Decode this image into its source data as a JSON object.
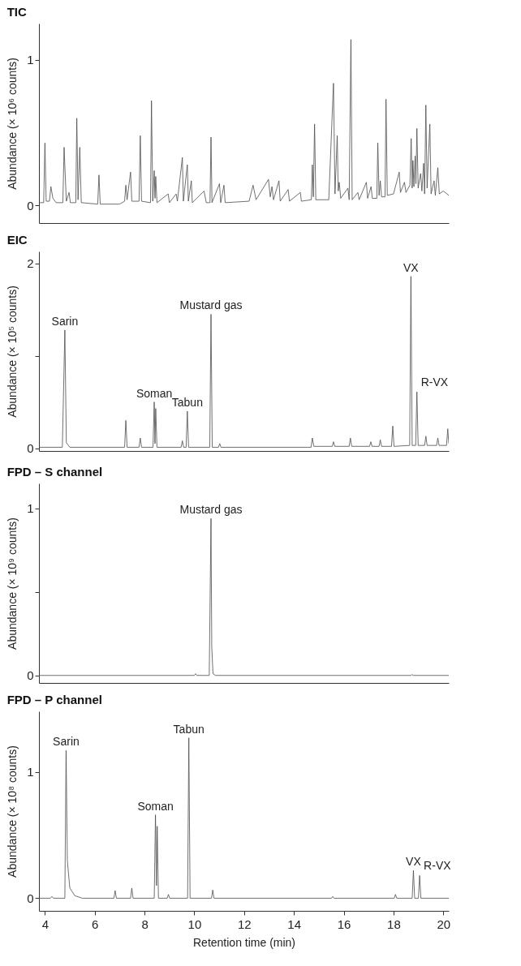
{
  "chart_data": [
    {
      "type": "line",
      "title": "TIC",
      "ylabel": "Abundance (× 10⁶ counts)",
      "xlim": [
        3.76,
        20.22
      ],
      "ylim": [
        -0.12,
        1.25
      ],
      "yticks": [
        0,
        1
      ],
      "tick_labels": "y",
      "grid": false,
      "line_style": "solid",
      "series": [
        {
          "color": "#4d4d4d",
          "x": [
            3.76,
            3.95,
            4.0,
            4.05,
            4.18,
            4.24,
            4.32,
            4.45,
            4.72,
            4.77,
            4.8,
            4.86,
            4.97,
            5.02,
            5.24,
            5.28,
            5.33,
            5.4,
            5.46,
            6.12,
            6.17,
            6.22,
            7.0,
            7.2,
            7.25,
            7.3,
            7.44,
            7.49,
            7.78,
            7.83,
            7.88,
            8.24,
            8.28,
            8.33,
            8.39,
            8.42,
            8.45,
            8.5,
            8.95,
            9.0,
            9.27,
            9.32,
            9.52,
            9.56,
            9.72,
            9.76,
            9.88,
            9.92,
            10.39,
            10.48,
            10.63,
            10.67,
            10.71,
            11.01,
            11.06,
            11.19,
            11.24,
            12.2,
            12.36,
            12.48,
            12.98,
            13.05,
            13.12,
            13.18,
            13.4,
            13.45,
            13.77,
            13.82,
            14.26,
            14.3,
            14.7,
            14.74,
            14.78,
            14.83,
            14.88,
            15.4,
            15.59,
            15.65,
            15.74,
            15.78,
            15.82,
            15.88,
            16.17,
            16.22,
            16.29,
            16.34,
            16.57,
            16.62,
            16.91,
            16.96,
            17.1,
            17.15,
            17.33,
            17.37,
            17.42,
            17.47,
            17.52,
            17.66,
            17.7,
            17.75,
            18.0,
            18.23,
            18.28,
            18.44,
            18.5,
            18.66,
            18.71,
            18.75,
            18.78,
            18.82,
            18.87,
            18.9,
            18.94,
            18.99,
            19.09,
            19.14,
            19.21,
            19.25,
            19.3,
            19.35,
            19.46,
            19.51,
            19.63,
            19.68,
            19.78,
            19.84,
            20.0,
            20.22
          ],
          "values": [
            0.02,
            0.02,
            0.43,
            0.03,
            0.03,
            0.13,
            0.05,
            0.02,
            0.02,
            0.4,
            0.27,
            0.03,
            0.09,
            0.02,
            0.02,
            0.6,
            0.04,
            0.4,
            0.02,
            0.01,
            0.21,
            0.01,
            0.01,
            0.03,
            0.14,
            0.04,
            0.23,
            0.03,
            0.03,
            0.48,
            0.03,
            0.02,
            0.72,
            0.03,
            0.24,
            0.05,
            0.2,
            0.02,
            0.08,
            0.02,
            0.08,
            0.03,
            0.33,
            0.03,
            0.28,
            0.03,
            0.17,
            0.02,
            0.1,
            0.02,
            0.02,
            0.47,
            0.02,
            0.15,
            0.02,
            0.14,
            0.02,
            0.03,
            0.14,
            0.04,
            0.18,
            0.06,
            0.13,
            0.04,
            0.17,
            0.03,
            0.11,
            0.03,
            0.09,
            0.03,
            0.04,
            0.28,
            0.06,
            0.56,
            0.04,
            0.04,
            0.84,
            0.08,
            0.48,
            0.1,
            0.16,
            0.05,
            0.12,
            0.04,
            1.14,
            0.04,
            0.09,
            0.04,
            0.16,
            0.05,
            0.13,
            0.05,
            0.05,
            0.43,
            0.07,
            0.17,
            0.06,
            0.06,
            0.73,
            0.07,
            0.08,
            0.23,
            0.09,
            0.16,
            0.09,
            0.14,
            0.46,
            0.12,
            0.31,
            0.13,
            0.34,
            0.15,
            0.53,
            0.12,
            0.22,
            0.1,
            0.29,
            0.08,
            0.69,
            0.12,
            0.56,
            0.08,
            0.17,
            0.07,
            0.26,
            0.08,
            0.1,
            0.07
          ]
        }
      ]
    },
    {
      "type": "line",
      "title": "EIC",
      "ylabel": "Abundance (× 10⁵ counts)",
      "xlim": [
        3.76,
        20.22
      ],
      "ylim": [
        -0.03,
        2.13
      ],
      "yticks": [
        0,
        {
          "value": 1,
          "label": null
        },
        2
      ],
      "tick_labels": "y",
      "grid": false,
      "line_style": "solid",
      "series": [
        {
          "color": "#4d4d4d",
          "x": [
            3.76,
            4.7,
            4.8,
            4.86,
            5.0,
            7.2,
            7.25,
            7.3,
            7.78,
            7.83,
            7.88,
            8.34,
            8.39,
            8.42,
            8.45,
            8.5,
            9.47,
            9.52,
            9.57,
            9.67,
            9.72,
            9.77,
            10.62,
            10.67,
            10.72,
            10.97,
            11.02,
            11.07,
            14.69,
            14.74,
            14.8,
            15.54,
            15.59,
            15.64,
            16.22,
            16.27,
            16.32,
            17.04,
            17.09,
            17.14,
            17.42,
            17.47,
            17.52,
            17.92,
            17.97,
            18.02,
            18.65,
            18.7,
            18.75,
            18.89,
            18.94,
            18.99,
            19.25,
            19.3,
            19.35,
            19.73,
            19.78,
            19.83,
            20.13,
            20.18,
            20.22
          ],
          "values": [
            0.01,
            0.01,
            1.28,
            0.06,
            0.01,
            0.01,
            0.3,
            0.01,
            0.01,
            0.11,
            0.01,
            0.01,
            0.5,
            0.05,
            0.43,
            0.01,
            0.01,
            0.08,
            0.01,
            0.01,
            0.4,
            0.01,
            0.01,
            1.45,
            0.01,
            0.01,
            0.05,
            0.01,
            0.01,
            0.11,
            0.02,
            0.02,
            0.07,
            0.02,
            0.02,
            0.11,
            0.02,
            0.02,
            0.07,
            0.02,
            0.02,
            0.09,
            0.02,
            0.02,
            0.24,
            0.02,
            0.03,
            1.86,
            0.03,
            0.03,
            0.61,
            0.03,
            0.03,
            0.13,
            0.03,
            0.03,
            0.11,
            0.03,
            0.03,
            0.21,
            0.05
          ]
        }
      ],
      "annotations": [
        {
          "text": "Sarin",
          "x": 4.8,
          "y": 1.28
        },
        {
          "text": "Soman",
          "x": 8.39,
          "y": 0.5
        },
        {
          "text": "Tabun",
          "x": 9.72,
          "y": 0.4
        },
        {
          "text": "Mustard gas",
          "x": 10.67,
          "y": 1.45
        },
        {
          "text": "VX",
          "x": 18.7,
          "y": 1.86
        },
        {
          "text": "R-VX",
          "x": 18.94,
          "y": 0.61
        }
      ]
    },
    {
      "type": "line",
      "title": "FPD – S channel",
      "ylabel": "Abundance (× 10⁹ counts)",
      "xlim": [
        3.76,
        20.22
      ],
      "ylim": [
        -0.045,
        1.15
      ],
      "yticks": [
        0,
        {
          "value": 0.5,
          "label": null
        },
        1
      ],
      "tick_labels": "y",
      "grid": false,
      "line_style": "solid",
      "series": [
        {
          "color": "#4d4d4d",
          "x": [
            3.76,
            10.0,
            10.05,
            10.1,
            10.6,
            10.67,
            10.7,
            10.75,
            10.85,
            18.7,
            18.74,
            18.8,
            20.22
          ],
          "values": [
            0,
            0,
            0.01,
            0,
            0,
            0.94,
            0.17,
            0.01,
            0,
            0,
            0.005,
            0,
            0
          ]
        }
      ],
      "annotations": [
        {
          "text": "Mustard gas",
          "x": 10.67,
          "y": 0.94
        }
      ]
    },
    {
      "type": "line",
      "title": "FPD – P channel",
      "xlabel": "Retention time (min)",
      "ylabel": "Abundance (× 10⁸ counts)",
      "xlim": [
        3.76,
        20.22
      ],
      "xticks": [
        4,
        6,
        8,
        10,
        12,
        14,
        16,
        18,
        20
      ],
      "ylim": [
        -0.1,
        1.48
      ],
      "yticks": [
        0,
        1
      ],
      "grid": false,
      "line_style": "solid",
      "series": [
        {
          "color": "#4d4d4d",
          "x": [
            3.76,
            4.22,
            4.28,
            4.34,
            4.8,
            4.85,
            4.9,
            5.0,
            5.2,
            5.5,
            6.77,
            6.82,
            6.87,
            7.44,
            7.49,
            7.54,
            8.39,
            8.44,
            8.48,
            8.51,
            8.56,
            8.91,
            8.96,
            9.01,
            9.73,
            9.78,
            9.83,
            10.69,
            10.74,
            10.79,
            15.51,
            15.56,
            15.61,
            18.03,
            18.08,
            18.13,
            18.75,
            18.8,
            18.85,
            19.0,
            19.05,
            19.1,
            20.22
          ],
          "values": [
            0,
            0,
            0.014,
            0,
            0,
            1.17,
            0.3,
            0.08,
            0.02,
            0,
            0,
            0.06,
            0,
            0,
            0.08,
            0,
            0,
            0.66,
            0.1,
            0.57,
            0,
            0,
            0.03,
            0,
            0,
            1.27,
            0,
            0,
            0.065,
            0,
            0,
            0.014,
            0,
            0,
            0.03,
            0,
            0,
            0.22,
            0,
            0,
            0.18,
            0,
            0
          ]
        }
      ],
      "annotations": [
        {
          "text": "Sarin",
          "x": 4.85,
          "y": 1.17
        },
        {
          "text": "Soman",
          "x": 8.44,
          "y": 0.66
        },
        {
          "text": "Tabun",
          "x": 9.78,
          "y": 1.27
        },
        {
          "text": "VX",
          "x": 18.8,
          "y": 0.22
        },
        {
          "text": "R-VX",
          "x": 19.05,
          "y": 0.18
        }
      ]
    }
  ]
}
